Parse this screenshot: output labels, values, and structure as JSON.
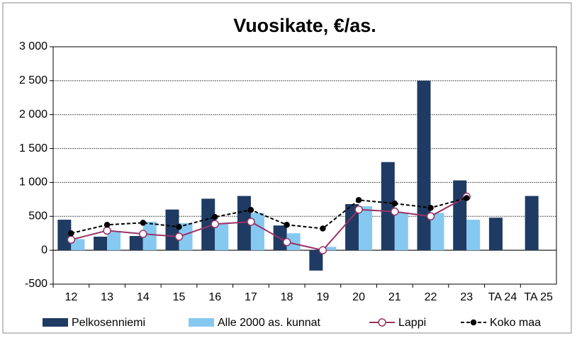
{
  "chart_data": {
    "type": "bar",
    "title": "Vuosikate, €/as.",
    "categories": [
      "12",
      "13",
      "14",
      "15",
      "16",
      "17",
      "18",
      "19",
      "20",
      "21",
      "22",
      "23",
      "TA 24",
      "TA 25"
    ],
    "series": [
      {
        "name": "Pelkosenniemi",
        "type": "bar",
        "color": "#1f3b63",
        "values": [
          450,
          200,
          210,
          600,
          760,
          800,
          365,
          -300,
          680,
          1300,
          2500,
          1030,
          480,
          800
        ]
      },
      {
        "name": "Alle 2000 as. kunnat",
        "type": "bar",
        "color": "#86c9f0",
        "values": [
          165,
          280,
          420,
          400,
          400,
          550,
          250,
          50,
          650,
          550,
          550,
          450,
          null,
          null
        ]
      },
      {
        "name": "Lappi",
        "type": "line",
        "color": "#993366",
        "marker_fill": "#ffffff",
        "dashed": false,
        "values": [
          155,
          290,
          240,
          200,
          385,
          420,
          120,
          0,
          600,
          570,
          500,
          790,
          null,
          null
        ]
      },
      {
        "name": "Koko maa",
        "type": "line",
        "color": "#000000",
        "marker_fill": "#000000",
        "dashed": true,
        "values": [
          250,
          375,
          405,
          345,
          490,
          595,
          375,
          320,
          740,
          690,
          625,
          770,
          null,
          null
        ]
      }
    ],
    "ylim": [
      -500,
      3000
    ],
    "yticks": [
      -500,
      0,
      500,
      {
        "value": 1000,
        "label": "1 000"
      },
      {
        "value": 1500,
        "label": "1 500"
      },
      {
        "value": 2000,
        "label": "2 000"
      },
      {
        "value": 2500,
        "label": "2 500"
      },
      {
        "value": 3000,
        "label": "3 000"
      }
    ],
    "grid": true
  }
}
